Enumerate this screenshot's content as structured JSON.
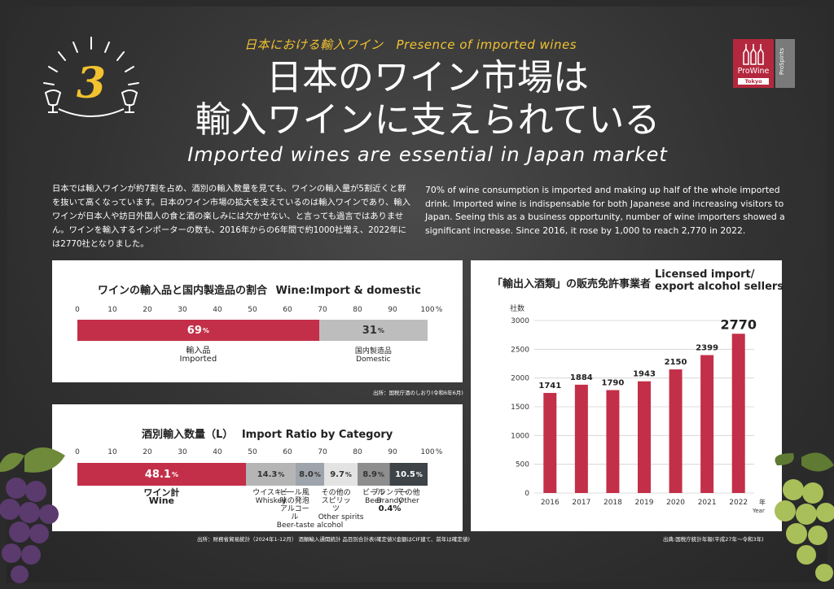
{
  "header": {
    "number": "3",
    "subtitle_ja": "日本における輸入ワイン",
    "subtitle_en": "Presence of imported wines",
    "title_line1": "日本のワイン市場は",
    "title_line2": "輸入ワインに支えられている",
    "title_en": "Imported wines are essential in Japan market"
  },
  "logo": {
    "main": "ProWine",
    "side": "ProSpirits",
    "city": "Tokyo"
  },
  "intro": {
    "ja": "日本では輸入ワインが約7割を占め、酒別の輸入数量を見ても、ワインの輸入量が5割近くと群を抜いて高くなっています。日本のワイン市場の拡大を支えているのは輸入ワインであり、輸入ワインが日本人や訪日外国人の食と酒の楽しみには欠かせない、と言っても過言ではありません。ワインを輸入するインポーターの数も、2016年からの6年間で約1000社増え、2022年には2770社となりました。",
    "en": "70% of wine consumption is imported and making up half of the whole imported drink. Imported wine is indispensable for both Japanese and increasing visitors to Japan. Seeing this as a business opportunity, number of wine importers showed a significant increase. Since 2016, it rose by 1,000 to reach 2,770 in 2022."
  },
  "chart_data": [
    {
      "type": "bar",
      "title": "ワインの輸入品と国内製造品の割合",
      "title_en": "Wine:Import & domestic",
      "ticks": [
        "0",
        "10",
        "20",
        "30",
        "40",
        "50",
        "60",
        "70",
        "80",
        "90",
        "100"
      ],
      "tick_unit": "%",
      "xlim": [
        0,
        100
      ],
      "segments": [
        {
          "value": 69,
          "label": "69",
          "unit": "%",
          "name_ja": "輸入品",
          "name_en": "Imported",
          "color": "#c32f48"
        },
        {
          "value": 31,
          "label": "31",
          "unit": "%",
          "name_ja": "国内製造品",
          "name_en": "Domestic",
          "color": "#bdbdbd"
        }
      ],
      "source": "出所：国税庁酒のしおり(令和6年6月)"
    },
    {
      "type": "bar",
      "title": "酒別輸入数量（L）",
      "title_en": "Import Ratio by Category",
      "ticks": [
        "0",
        "10",
        "20",
        "30",
        "40",
        "50",
        "60",
        "70",
        "80",
        "90",
        "100"
      ],
      "tick_unit": "%",
      "xlim": [
        0,
        100
      ],
      "segments": [
        {
          "value": 48.1,
          "label": "48.1",
          "unit": "%",
          "name_ja": "ワイン計",
          "name_en": "Wine",
          "color": "#c32f48"
        },
        {
          "value": 14.3,
          "label": "14.3",
          "unit": "%",
          "name_ja": "ウイスキー",
          "name_en": "Whiskey",
          "color": "#b5b5b5"
        },
        {
          "value": 8.0,
          "label": "8.0",
          "unit": "%",
          "name_ja": "ビール風味の発泡アルコール",
          "name_en": "Beer-taste alcohol",
          "color": "#9ea4ab"
        },
        {
          "value": 9.7,
          "label": "9.7",
          "unit": "%",
          "name_ja": "その他のスピリッツ",
          "name_en": "Other spirits",
          "color": "#e3e3e3"
        },
        {
          "value": 8.9,
          "label": "8.9",
          "unit": "%",
          "name_ja": "ビール",
          "name_en": "Beer",
          "color": "#8e8e8e"
        },
        {
          "value": 0.4,
          "label": "",
          "unit": "",
          "name_ja": "ブランデー",
          "name_en": "Brandy",
          "value_label": "0.4%",
          "color": "#6e6e6e"
        },
        {
          "value": 10.5,
          "label": "10.5",
          "unit": "%",
          "name_ja": "その他",
          "name_en": "Other",
          "color": "#3d4347"
        }
      ],
      "source": "出所：財務省貿易統計（2024年1-12月） 酒類輸入通関統計 品目別合計表(確定値)(金額はCIF建て、前年は確定値)"
    },
    {
      "type": "bar",
      "title_ja": "「輸出入酒類」の販売免許事業者",
      "title_en_line1": "Licensed import/",
      "title_en_line2": "export alcohol sellers",
      "ylabel": "社数",
      "xlabel_ja": "年",
      "xlabel_en": "Year",
      "categories": [
        "2016",
        "2017",
        "2018",
        "2019",
        "2020",
        "2021",
        "2022"
      ],
      "values": [
        1741,
        1884,
        1790,
        1943,
        2150,
        2399,
        2770
      ],
      "ylim": [
        0,
        3000
      ],
      "yticks": [
        0,
        500,
        1000,
        1500,
        2000,
        2500,
        3000
      ],
      "color": "#c32f48",
      "source": "出典:国税庁統計年報(平成27年～令和3年)"
    }
  ]
}
